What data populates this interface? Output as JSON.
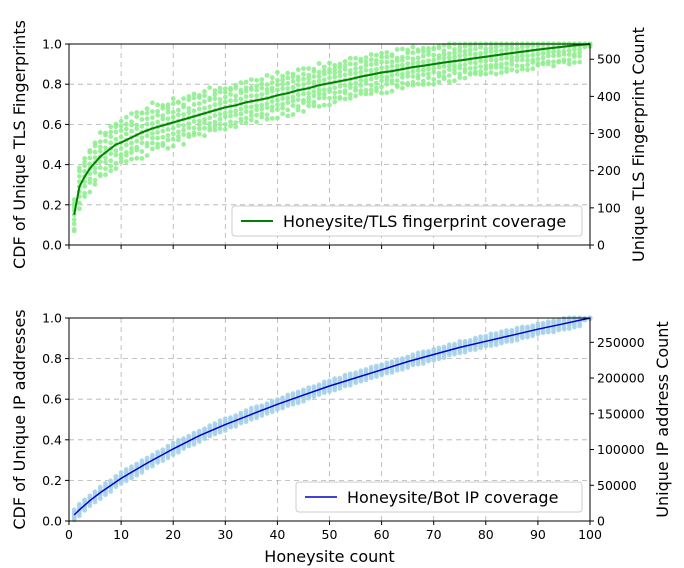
{
  "chart_data": [
    {
      "type": "line",
      "title": "",
      "xlabel": "",
      "ylabel": "CDF of Unique TLS Fingerprints",
      "ylabel_right": "Unique TLS Fingerprint Count",
      "xlim": [
        0,
        100
      ],
      "ylim": [
        0,
        1.0
      ],
      "ylim_right": [
        0,
        541
      ],
      "x_ticks": [
        0,
        10,
        20,
        30,
        40,
        50,
        60,
        70,
        80,
        90,
        100
      ],
      "x_tick_labels_visible": false,
      "y_ticks": [
        "0.0",
        "0.2",
        "0.4",
        "0.6",
        "0.8",
        "1.0"
      ],
      "y_ticks_right": [
        "0",
        "100",
        "200",
        "300",
        "400",
        "500"
      ],
      "grid": true,
      "legend_position": "lower-right",
      "colors": {
        "line": "#008000",
        "scatter": "#90ee90"
      },
      "series": [
        {
          "name": "Honeysite/TLS fingerprint coverage",
          "x": [
            1,
            2,
            3,
            4,
            5,
            6,
            7,
            8,
            9,
            10,
            12,
            14,
            16,
            18,
            20,
            22,
            24,
            26,
            28,
            30,
            32,
            34,
            36,
            38,
            40,
            42,
            44,
            46,
            48,
            50,
            52,
            54,
            56,
            58,
            60,
            62,
            64,
            66,
            68,
            70,
            72,
            74,
            76,
            78,
            80,
            82,
            84,
            86,
            88,
            90,
            92,
            94,
            96,
            98,
            100
          ],
          "values": [
            0.15,
            0.29,
            0.34,
            0.38,
            0.41,
            0.44,
            0.46,
            0.48,
            0.5,
            0.51,
            0.535,
            0.56,
            0.58,
            0.595,
            0.61,
            0.625,
            0.64,
            0.655,
            0.67,
            0.685,
            0.695,
            0.71,
            0.72,
            0.73,
            0.745,
            0.755,
            0.77,
            0.78,
            0.795,
            0.805,
            0.815,
            0.825,
            0.838,
            0.848,
            0.858,
            0.865,
            0.875,
            0.885,
            0.892,
            0.9,
            0.908,
            0.915,
            0.922,
            0.93,
            0.937,
            0.944,
            0.951,
            0.958,
            0.965,
            0.972,
            0.978,
            0.984,
            0.99,
            0.995,
            1.0
          ]
        }
      ]
    },
    {
      "type": "line",
      "title": "",
      "xlabel": "Honeysite count",
      "ylabel": "CDF of Unique IP addresses",
      "ylabel_right": "Unique IP address Count",
      "xlim": [
        0,
        100
      ],
      "ylim": [
        0,
        1.0
      ],
      "ylim_right": [
        0,
        284000
      ],
      "x_ticks": [
        0,
        10,
        20,
        30,
        40,
        50,
        60,
        70,
        80,
        90,
        100
      ],
      "x_tick_labels": [
        "0",
        "10",
        "20",
        "30",
        "40",
        "50",
        "60",
        "70",
        "80",
        "90",
        "100"
      ],
      "y_ticks": [
        "0.0",
        "0.2",
        "0.4",
        "0.6",
        "0.8",
        "1.0"
      ],
      "y_ticks_right": [
        "0",
        "50000",
        "100000",
        "150000",
        "200000",
        "250000"
      ],
      "grid": true,
      "legend_position": "lower-right",
      "colors": {
        "line": "#0000cd",
        "scatter": "#a6d1e8"
      },
      "series": [
        {
          "name": "Honeysite/Bot IP coverage",
          "x": [
            1,
            2,
            4,
            6,
            8,
            10,
            15,
            20,
            25,
            30,
            35,
            40,
            45,
            50,
            55,
            60,
            65,
            70,
            75,
            80,
            85,
            90,
            95,
            100
          ],
          "values": [
            0.03,
            0.055,
            0.1,
            0.14,
            0.175,
            0.21,
            0.285,
            0.355,
            0.42,
            0.475,
            0.525,
            0.575,
            0.62,
            0.665,
            0.705,
            0.745,
            0.785,
            0.82,
            0.855,
            0.885,
            0.915,
            0.945,
            0.972,
            1.0
          ]
        }
      ]
    }
  ]
}
